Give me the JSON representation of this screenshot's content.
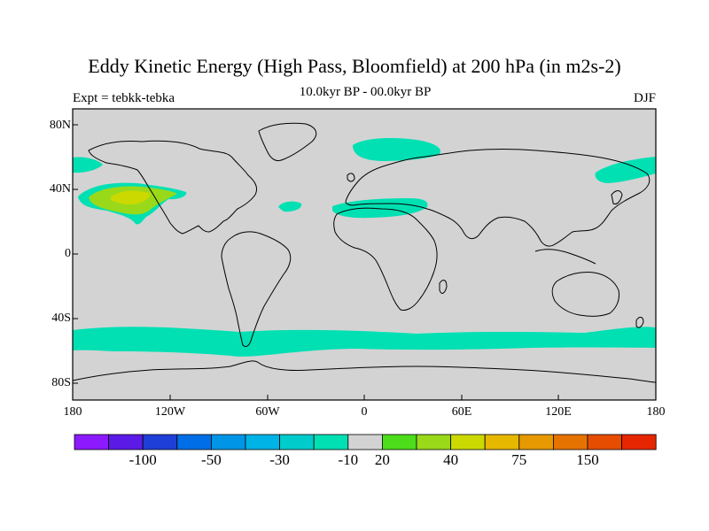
{
  "title": "Eddy Kinetic Energy (High Pass, Bloomfield) at 200 hPa (in m2s-2)",
  "subtitle_center": "10.0kyr BP - 00.0kyr BP",
  "subtitle_left": "Expt = tebkk-tebka",
  "subtitle_right": "DJF",
  "lat_labels": [
    "80N",
    "40N",
    "0",
    "40S",
    "80S"
  ],
  "lon_labels": [
    "180",
    "120W",
    "60W",
    "0",
    "60E",
    "120E",
    "180"
  ],
  "colorbar": {
    "colors": [
      "#8c1aff",
      "#5c1ae6",
      "#1f3fd9",
      "#006ee6",
      "#0095e6",
      "#00b3e6",
      "#00cccc",
      "#00e0b3",
      "#d3d3d3",
      "#4ddd1a",
      "#99d91a",
      "#ccd900",
      "#e6b800",
      "#e69900",
      "#e67300",
      "#e64d00",
      "#e62600"
    ],
    "labels": [
      "-100",
      "-50",
      "-30",
      "-10",
      "20",
      "40",
      "75",
      "150"
    ]
  },
  "map": {
    "background_color": "#d3d3d3",
    "anomaly_color": "#00e0b3",
    "positive_color_1": "#99d91a",
    "positive_color_2": "#ccd900"
  }
}
